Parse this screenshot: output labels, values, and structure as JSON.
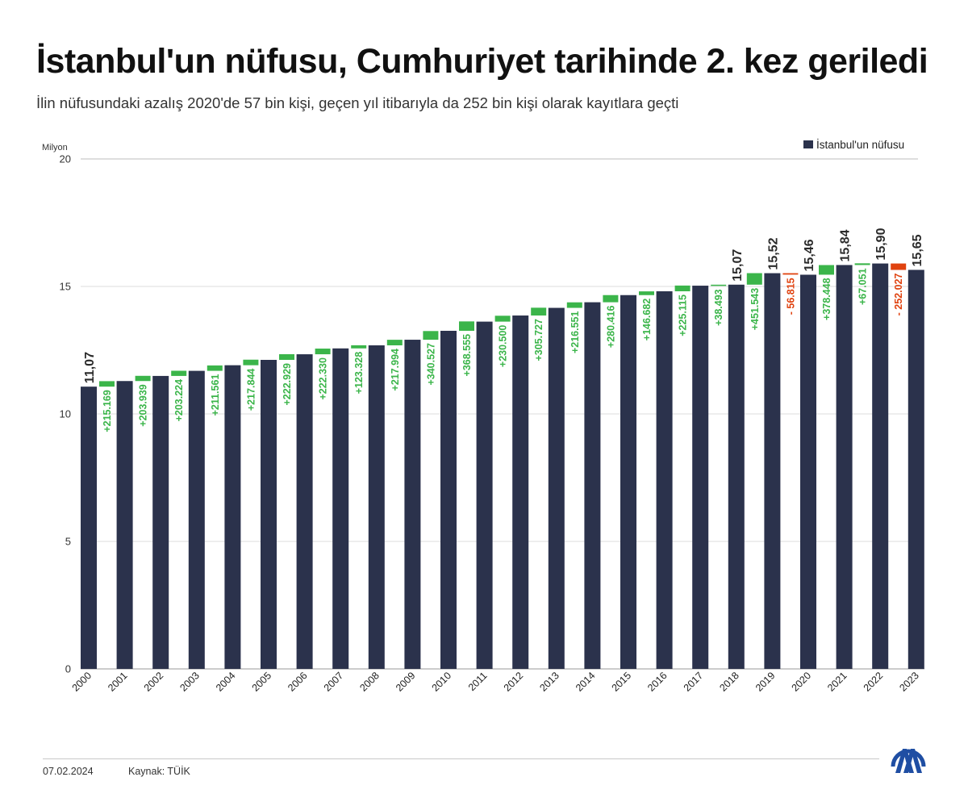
{
  "title": "İstanbul'un nüfusu, Cumhuriyet tarihinde 2. kez geriledi",
  "subtitle": "İlin nüfusundaki azalış 2020'de 57 bin kişi, geçen yıl itibarıyla da 252 bin kişi olarak kayıtlara geçti",
  "colors": {
    "bar": "#2b324c",
    "increase": "#3bb54a",
    "decrease": "#e0420f",
    "grid": "#dedede"
  },
  "chart_data": {
    "type": "bar",
    "ylabel": "Milyon",
    "ylim": [
      0,
      20
    ],
    "yticks": [
      0,
      5,
      10,
      15,
      20
    ],
    "grid": true,
    "legend_position": "top-right",
    "series": [
      {
        "name": "İstanbul'un nüfusu",
        "values": [
          11.07,
          11.29,
          11.49,
          11.69,
          11.91,
          12.12,
          12.34,
          12.57,
          12.69,
          12.91,
          13.26,
          13.62,
          13.86,
          14.16,
          14.38,
          14.66,
          14.81,
          15.03,
          15.07,
          15.52,
          15.46,
          15.84,
          15.9,
          15.65
        ]
      }
    ],
    "categories": [
      "2000",
      "2001",
      "2002",
      "2003",
      "2004",
      "2005",
      "2006",
      "2007",
      "2008",
      "2009",
      "2010",
      "2011",
      "2012",
      "2013",
      "2014",
      "2015",
      "2016",
      "2017",
      "2018",
      "2019",
      "2020",
      "2021",
      "2022",
      "2023"
    ],
    "value_labels": [
      {
        "index": 0,
        "text": "11,07"
      },
      {
        "index": 18,
        "text": "15,07"
      },
      {
        "index": 19,
        "text": "15,52"
      },
      {
        "index": 20,
        "text": "15,46"
      },
      {
        "index": 21,
        "text": "15,84"
      },
      {
        "index": 22,
        "text": "15,90"
      },
      {
        "index": 23,
        "text": "15,65"
      }
    ],
    "changes": [
      {
        "after_index": 0,
        "value": 215169,
        "label": "+215.169"
      },
      {
        "after_index": 1,
        "value": 203939,
        "label": "+203.939"
      },
      {
        "after_index": 2,
        "value": 203224,
        "label": "+203.224"
      },
      {
        "after_index": 3,
        "value": 211561,
        "label": "+211.561"
      },
      {
        "after_index": 4,
        "value": 217844,
        "label": "+217.844"
      },
      {
        "after_index": 5,
        "value": 222929,
        "label": "+222.929"
      },
      {
        "after_index": 6,
        "value": 222330,
        "label": "+222.330"
      },
      {
        "after_index": 7,
        "value": 123328,
        "label": "+123.328"
      },
      {
        "after_index": 8,
        "value": 217994,
        "label": "+217.994"
      },
      {
        "after_index": 9,
        "value": 340527,
        "label": "+340.527"
      },
      {
        "after_index": 10,
        "value": 368555,
        "label": "+368.555"
      },
      {
        "after_index": 11,
        "value": 230500,
        "label": "+230.500"
      },
      {
        "after_index": 12,
        "value": 305727,
        "label": "+305.727"
      },
      {
        "after_index": 13,
        "value": 216551,
        "label": "+216.551"
      },
      {
        "after_index": 14,
        "value": 280416,
        "label": "+280.416"
      },
      {
        "after_index": 15,
        "value": 146682,
        "label": "+146.682"
      },
      {
        "after_index": 16,
        "value": 225115,
        "label": "+225.115"
      },
      {
        "after_index": 17,
        "value": 38493,
        "label": "+38.493"
      },
      {
        "after_index": 18,
        "value": 451543,
        "label": "+451.543"
      },
      {
        "after_index": 19,
        "value": -56815,
        "label": "- 56.815"
      },
      {
        "after_index": 20,
        "value": 378448,
        "label": "+378.448"
      },
      {
        "after_index": 21,
        "value": 67051,
        "label": "+67.051"
      },
      {
        "after_index": 22,
        "value": -252027,
        "label": "- 252.027"
      }
    ]
  },
  "footer": {
    "date": "07.02.2024",
    "source": "Kaynak: TÜİK"
  },
  "logo": {
    "icon": "aa-logo-icon"
  }
}
